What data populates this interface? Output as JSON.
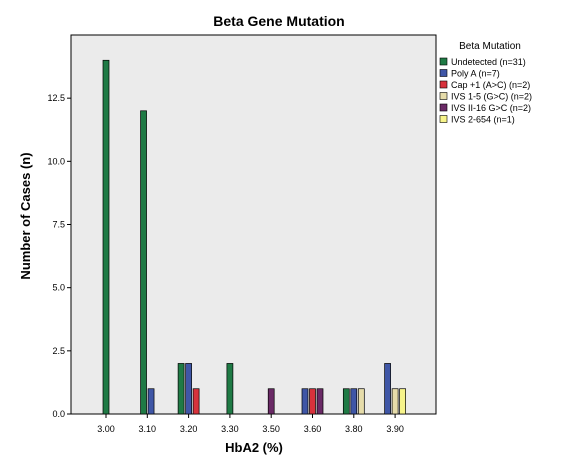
{
  "chart_data": {
    "type": "bar",
    "title": "Beta Gene Mutation",
    "xlabel": "HbA2 (%)",
    "ylabel": "Number of Cases (n)",
    "ylim": [
      0,
      15
    ],
    "yticks": [
      "0.0",
      "2.5",
      "5.0",
      "7.5",
      "10.0",
      "12.5"
    ],
    "categories": [
      "3.00",
      "3.10",
      "3.20",
      "3.30",
      "3.50",
      "3.60",
      "3.80",
      "3.90"
    ],
    "legend_title": "Beta Mutation",
    "legend_position": "right",
    "grid": false,
    "series": [
      {
        "name": "Undetected (n=31)",
        "color": "#1f7a45",
        "values": [
          14,
          12,
          2,
          2,
          0,
          0,
          1,
          0
        ]
      },
      {
        "name": "Poly A (n=7)",
        "color": "#3f56a6",
        "values": [
          0,
          1,
          2,
          0,
          0,
          1,
          1,
          2
        ]
      },
      {
        "name": "Cap +1 (A>C) (n=2)",
        "color": "#d8323c",
        "values": [
          0,
          0,
          1,
          0,
          0,
          1,
          0,
          0
        ]
      },
      {
        "name": "IVS 1-5 (G>C) (n=2)",
        "color": "#e6dcaa",
        "values": [
          0,
          0,
          0,
          0,
          0,
          0,
          1,
          1
        ]
      },
      {
        "name": "IVS II-16 G>C (n=2)",
        "color": "#6a2a66",
        "values": [
          0,
          0,
          0,
          0,
          1,
          1,
          0,
          0
        ]
      },
      {
        "name": "IVS 2-654 (n=1)",
        "color": "#f7f48a",
        "values": [
          0,
          0,
          0,
          0,
          0,
          0,
          0,
          1
        ]
      }
    ],
    "plot_background": "#ebebeb"
  }
}
